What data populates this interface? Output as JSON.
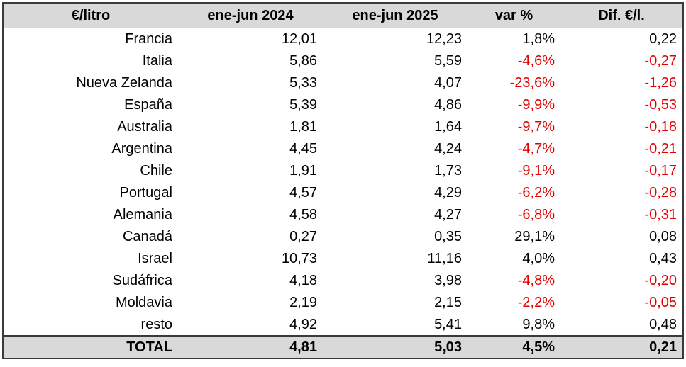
{
  "table": {
    "header": [
      "€/litro",
      "ene-jun 2024",
      "ene-jun 2025",
      "var %",
      "Dif. €/l."
    ],
    "rows": [
      [
        "Francia",
        "12,01",
        "12,23",
        "1,8%",
        "0,22"
      ],
      [
        "Italia",
        "5,86",
        "5,59",
        "-4,6%",
        "-0,27"
      ],
      [
        "Nueva Zelanda",
        "5,33",
        "4,07",
        "-23,6%",
        "-1,26"
      ],
      [
        "España",
        "5,39",
        "4,86",
        "-9,9%",
        "-0,53"
      ],
      [
        "Australia",
        "1,81",
        "1,64",
        "-9,7%",
        "-0,18"
      ],
      [
        "Argentina",
        "4,45",
        "4,24",
        "-4,7%",
        "-0,21"
      ],
      [
        "Chile",
        "1,91",
        "1,73",
        "-9,1%",
        "-0,17"
      ],
      [
        "Portugal",
        "4,57",
        "4,29",
        "-6,2%",
        "-0,28"
      ],
      [
        "Alemania",
        "4,58",
        "4,27",
        "-6,8%",
        "-0,31"
      ],
      [
        "Canadá",
        "0,27",
        "0,35",
        "29,1%",
        "0,08"
      ],
      [
        "Israel",
        "10,73",
        "11,16",
        "4,0%",
        "0,43"
      ],
      [
        "Sudáfrica",
        "4,18",
        "3,98",
        "-4,8%",
        "-0,20"
      ],
      [
        "Moldavia",
        "2,19",
        "2,15",
        "-2,2%",
        "-0,05"
      ],
      [
        "resto",
        "4,92",
        "5,41",
        "9,8%",
        "0,48"
      ]
    ],
    "total": [
      "TOTAL",
      "4,81",
      "5,03",
      "4,5%",
      "0,21"
    ]
  }
}
